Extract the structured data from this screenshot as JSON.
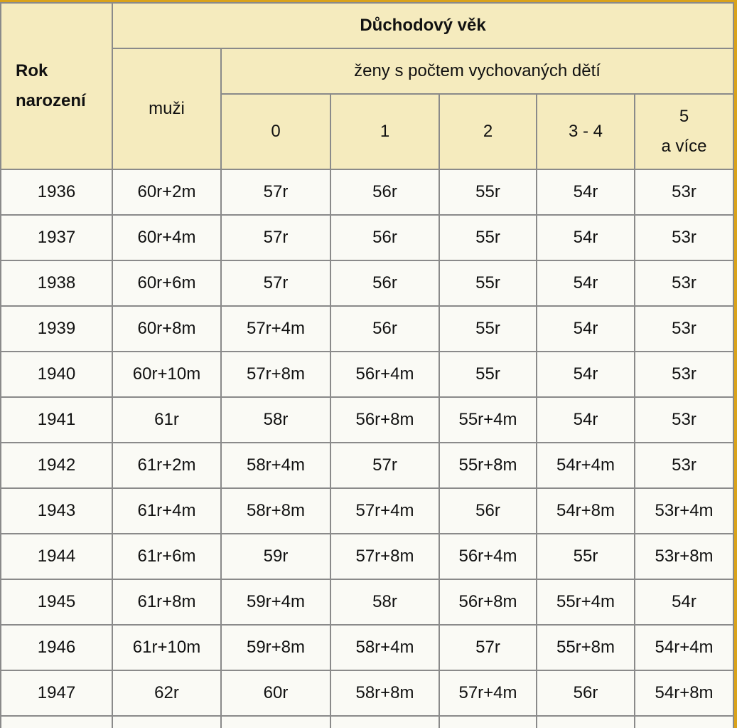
{
  "header": {
    "title": "Důchodový věk",
    "year_label": [
      "Rok",
      "narození"
    ],
    "men_label": "muži",
    "women_label": "ženy s počtem vychovaných dětí",
    "children": [
      [
        "0"
      ],
      [
        "1"
      ],
      [
        "2"
      ],
      [
        "3 - 4"
      ],
      [
        "5",
        "a více"
      ]
    ]
  },
  "table": {
    "rows": [
      [
        "1936",
        "60r+2m",
        "57r",
        "56r",
        "55r",
        "54r",
        "53r"
      ],
      [
        "1937",
        "60r+4m",
        "57r",
        "56r",
        "55r",
        "54r",
        "53r"
      ],
      [
        "1938",
        "60r+6m",
        "57r",
        "56r",
        "55r",
        "54r",
        "53r"
      ],
      [
        "1939",
        "60r+8m",
        "57r+4m",
        "56r",
        "55r",
        "54r",
        "53r"
      ],
      [
        "1940",
        "60r+10m",
        "57r+8m",
        "56r+4m",
        "55r",
        "54r",
        "53r"
      ],
      [
        "1941",
        "61r",
        "58r",
        "56r+8m",
        "55r+4m",
        "54r",
        "53r"
      ],
      [
        "1942",
        "61r+2m",
        "58r+4m",
        "57r",
        "55r+8m",
        "54r+4m",
        "53r"
      ],
      [
        "1943",
        "61r+4m",
        "58r+8m",
        "57r+4m",
        "56r",
        "54r+8m",
        "53r+4m"
      ],
      [
        "1944",
        "61r+6m",
        "59r",
        "57r+8m",
        "56r+4m",
        "55r",
        "53r+8m"
      ],
      [
        "1945",
        "61r+8m",
        "59r+4m",
        "58r",
        "56r+8m",
        "55r+4m",
        "54r"
      ],
      [
        "1946",
        "61r+10m",
        "59r+8m",
        "58r+4m",
        "57r",
        "55r+8m",
        "54r+4m"
      ],
      [
        "1947",
        "62r",
        "60r",
        "58r+8m",
        "57r+4m",
        "56r",
        "54r+8m"
      ]
    ]
  }
}
